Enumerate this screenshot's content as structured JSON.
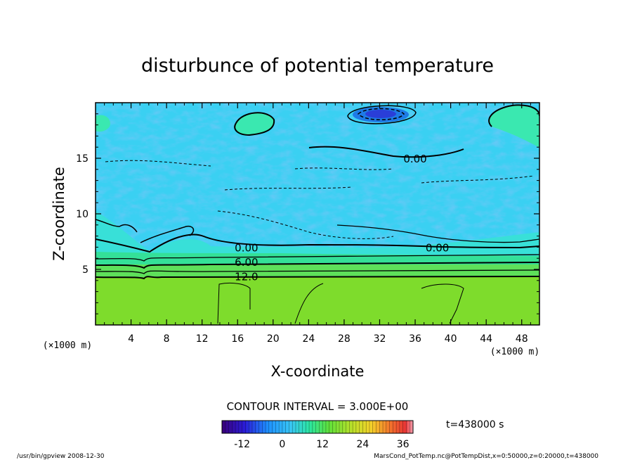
{
  "chart_data": {
    "type": "heatmap",
    "title": "disturbunce of potential temperature",
    "xlabel": "X-coordinate",
    "ylabel": "Z-coordinate",
    "x_unit": "(×1000 m)",
    "y_unit": "(×1000 m)",
    "xlim": [
      0,
      50
    ],
    "ylim": [
      0,
      20
    ],
    "x_ticks": [
      4,
      8,
      12,
      16,
      20,
      24,
      28,
      32,
      36,
      40,
      44,
      48
    ],
    "y_ticks": [
      5,
      10,
      15
    ],
    "contour_interval": "CONTOUR INTERVAL = 3.000E+00",
    "contour_labels": [
      {
        "text": "0.00",
        "x": 17,
        "z": 7.0
      },
      {
        "text": "6.00",
        "x": 17,
        "z": 5.7
      },
      {
        "text": "12.0",
        "x": 17,
        "z": 4.4
      },
      {
        "text": "0.00",
        "x": 38.5,
        "z": 7.0
      },
      {
        "text": "0.00",
        "x": 36,
        "z": 15.0
      }
    ],
    "colorbar": {
      "min": -18,
      "max": 39,
      "ticks": [
        "-12",
        "0",
        "12",
        "24",
        "36"
      ],
      "tick_values": [
        -12,
        0,
        12,
        24,
        36
      ]
    },
    "time_label": "t=438000 s",
    "footer_left": "/usr/bin/gpview   2008-12-30",
    "footer_right": "MarsCond_PotTemp.nc@PotTempDist,x=0:50000,z=0:20000,t=438000"
  }
}
